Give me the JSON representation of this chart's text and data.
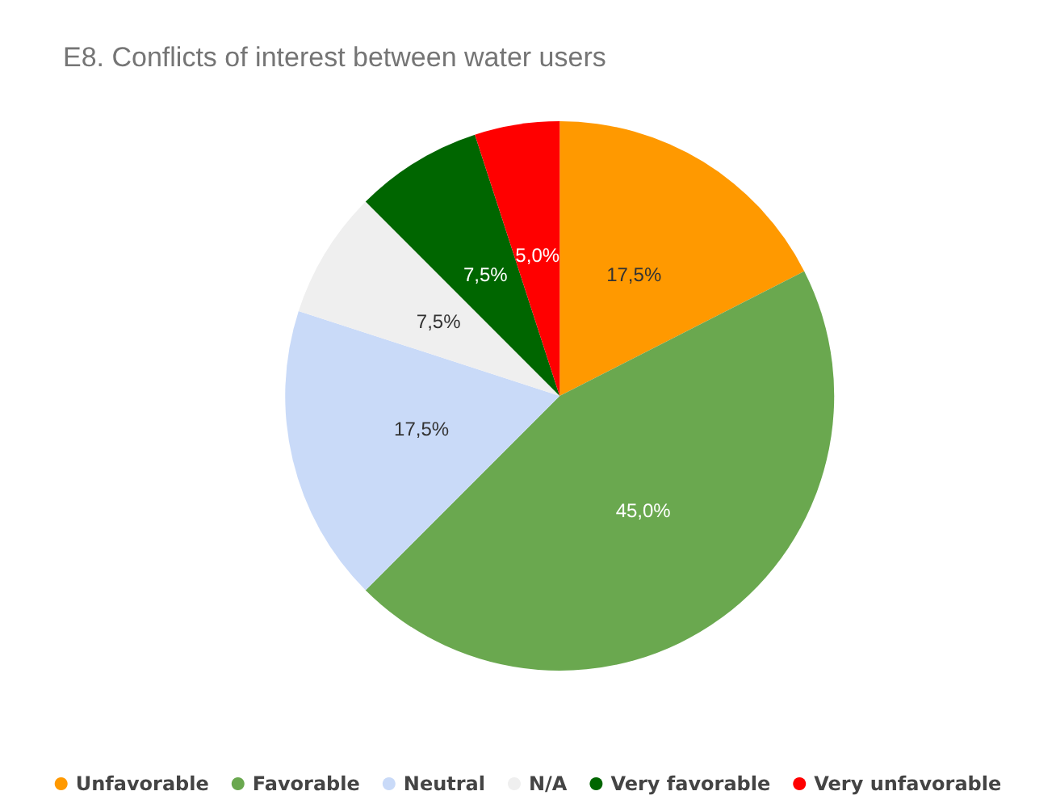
{
  "chart_data": {
    "type": "pie",
    "title": "E8. Conflicts of interest between water users",
    "categories": [
      "Unfavorable",
      "Favorable",
      "Neutral",
      "N/A",
      "Very favorable",
      "Very unfavorable"
    ],
    "values": [
      17.5,
      45.0,
      17.5,
      7.5,
      7.5,
      5.0
    ],
    "value_labels": [
      "17,5%",
      "45,0%",
      "17,5%",
      "7,5%",
      "7,5%",
      "5,0%"
    ],
    "colors": [
      "#ff9900",
      "#6aa84f",
      "#c9daf8",
      "#efefef",
      "#006600",
      "#ff0000"
    ],
    "legend": "bottom"
  }
}
